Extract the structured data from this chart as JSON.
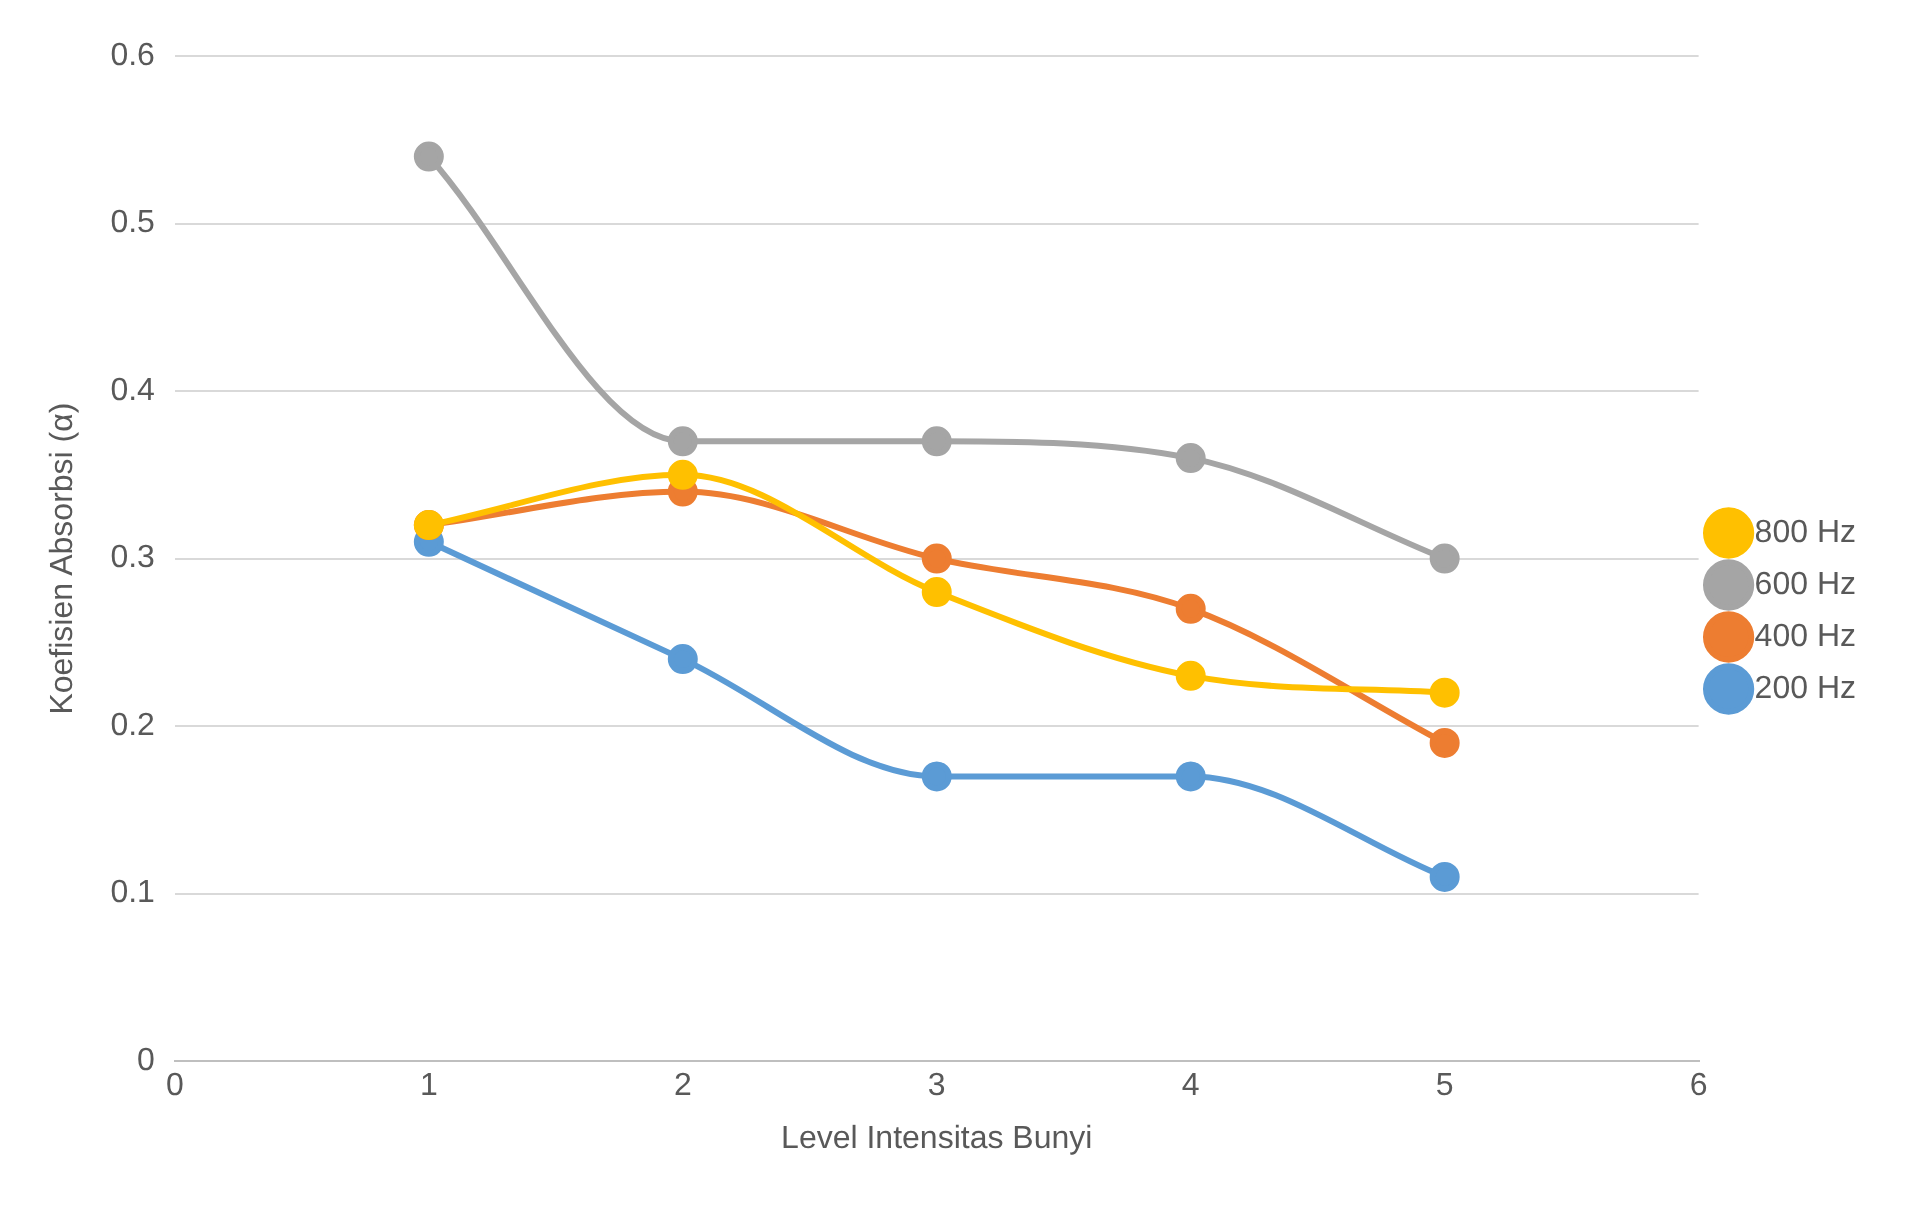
{
  "chart_data": {
    "type": "line",
    "xlabel": "Level Intensitas Bunyi",
    "ylabel": "Koefisien Absorbsi (α)",
    "x": [
      1,
      2,
      3,
      4,
      5
    ],
    "series": [
      {
        "name": "200 Hz",
        "color": "#5b9bd5",
        "values": [
          0.31,
          0.24,
          0.17,
          0.17,
          0.11
        ]
      },
      {
        "name": "400 Hz",
        "color": "#ed7d31",
        "values": [
          0.32,
          0.34,
          0.3,
          0.27,
          0.19
        ]
      },
      {
        "name": "600 Hz",
        "color": "#a5a5a5",
        "values": [
          0.54,
          0.37,
          0.37,
          0.36,
          0.3
        ]
      },
      {
        "name": "800 Hz",
        "color": "#ffc000",
        "values": [
          0.32,
          0.35,
          0.28,
          0.23,
          0.22
        ]
      }
    ],
    "xlim": [
      0,
      6
    ],
    "xticks": [
      0,
      1,
      2,
      3,
      4,
      5,
      6
    ],
    "ylim": [
      0,
      0.6
    ],
    "yticks": [
      0,
      0.1,
      0.2,
      0.3,
      0.4,
      0.5,
      0.6
    ],
    "grid": "y",
    "legend": "right",
    "marker": "circle",
    "line_style": "solid"
  }
}
